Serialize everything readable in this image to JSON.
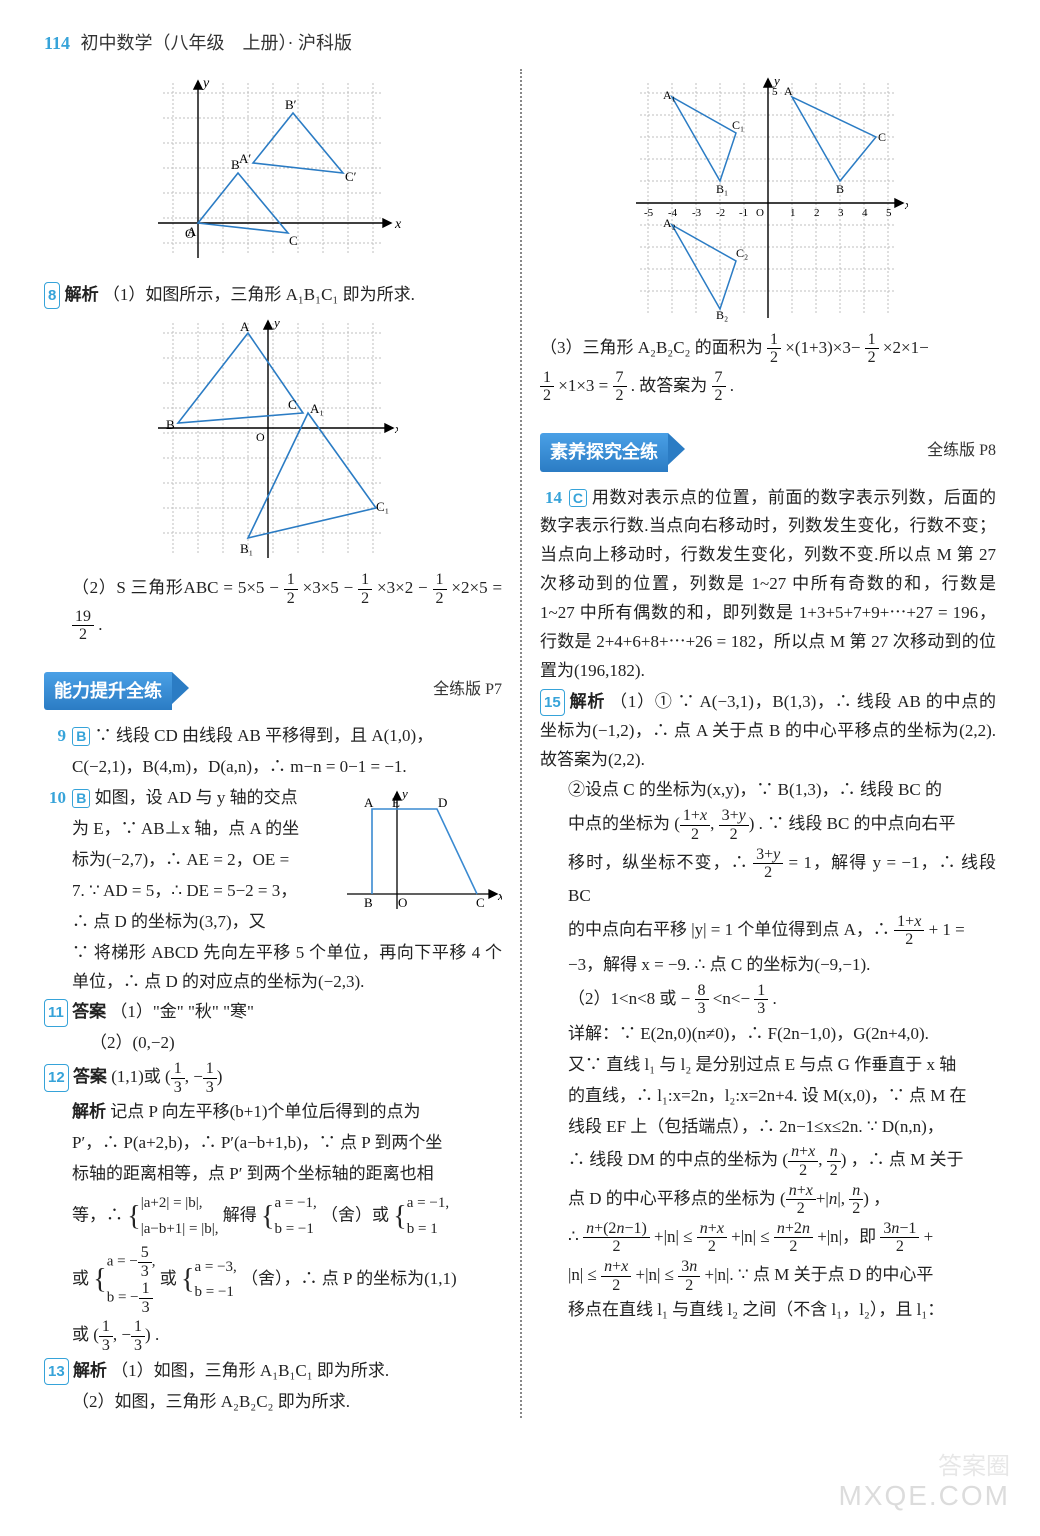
{
  "header": {
    "pageNum": "114",
    "title": "初中数学（八年级　上册）· 沪科版"
  },
  "left": {
    "q8": {
      "num": "8",
      "label": "解析",
      "p1": "（1）如图所示，三角形 A₁B₁C₁ 即为所求.",
      "p2_pre": "（2）S 三角形ABC = 5×5 − ",
      "p2_mid1": "×3×5 − ",
      "p2_mid2": "×3×2 − ",
      "p2_mid3": "×2×5 = ",
      "p2_end": "."
    },
    "banner1": "能力提升全练",
    "banner1_ref": "全练版 P7",
    "q9": {
      "num": "9",
      "ans": "B",
      "t1": "∵ 线段 CD 由线段 AB 平移得到，且 A(1,0)，",
      "t2": "C(−2,1)，B(4,m)，D(a,n)，∴ m−n = 0−1 = −1."
    },
    "q10": {
      "num": "10",
      "ans": "B",
      "t1": "如图，设 AD 与 y 轴的交点",
      "t2": "为 E，∵ AB⊥x 轴，点 A 的坐",
      "t3": "标为(−2,7)，∴ AE = 2，OE =",
      "t4": "7. ∵ AD = 5，∴ DE = 5−2 = 3，",
      "t5": "∴ 点 D 的坐标为(3,7)，又",
      "t6": "∵ 将梯形 ABCD 先向左平移 5 个单位，再向下平移 4 个单位，∴ 点 D 的对应点的坐标为(−2,3)."
    },
    "q11": {
      "num": "11",
      "label": "答案",
      "a1": "（1）\"金\" \"秋\" \"寒\"",
      "a2": "（2）(0,−2)"
    },
    "q12": {
      "num": "12",
      "label": "答案",
      "ans_pre": "(1,1)或",
      "ans_suf": "",
      "jx": "解析",
      "t1": "记点 P 向左平移(b+1)个单位后得到的点为",
      "t2": "P′，∴ P(a+2,b)，∴ P′(a−b+1,b)，∵ 点 P 到两个坐",
      "t3": "标轴的距离相等，点 P′ 到两个坐标轴的距离也相",
      "t4a": "等，∴",
      "t4b": "|a+2| = |b|,",
      "t4c": "|a−b+1| = |b|,",
      "t4d": "解得",
      "t4e": "a = −1,",
      "t4f": "b = −1",
      "t4g": "（舍）或",
      "t4h": "a = −1,",
      "t4i": "b = 1",
      "t5pre": "或",
      "t5a": "a = −",
      "t5b": "b = −",
      "t5c": "或",
      "t5d": "a = −3,",
      "t5e": "b = −1",
      "t5f": "（舍），∴ 点 P 的坐标为(1,1)",
      "t6": "或",
      "t6end": "."
    },
    "q13": {
      "num": "13",
      "label": "解析",
      "t1": "（1）如图，三角形 A₁B₁C₁ 即为所求.",
      "t2": "（2）如图，三角形 A₂B₂C₂ 即为所求."
    },
    "graph_top": {
      "type": "coord-grid",
      "xrange": [
        -2,
        7
      ],
      "yrange": [
        -2,
        7
      ],
      "pts": {
        "A": [
          0,
          0
        ],
        "B": [
          1,
          2
        ],
        "C": [
          3,
          0
        ],
        "Ap": [
          2,
          3
        ],
        "Bp": [
          3,
          5
        ],
        "Cp": [
          5,
          3
        ]
      },
      "grid_color": "#bfbfbf",
      "axis_color": "#000",
      "tri_color": "#2b7cc4"
    },
    "graph_mid": {
      "type": "coord-grid",
      "xrange": [
        -5,
        5
      ],
      "yrange": [
        -5,
        5
      ],
      "pts": {
        "A": [
          -1,
          4.5
        ],
        "B": [
          -4,
          0.5
        ],
        "C": [
          1.5,
          1
        ],
        "A1": [
          2,
          1
        ],
        "B1": [
          0,
          -4.5
        ],
        "C1": [
          4.5,
          -3.5
        ]
      },
      "grid_color": "#bfbfbf",
      "axis_color": "#000",
      "tri_color": "#2b7cc4"
    },
    "graph_q10": {
      "type": "trapezoid",
      "A": [
        -2,
        7
      ],
      "E": [
        0,
        7
      ],
      "D": [
        3,
        7
      ],
      "B": [
        -2,
        0
      ],
      "O": [
        0,
        0
      ],
      "C": [
        5,
        0
      ],
      "axis_color": "#000",
      "line_color": "#3a8ad1"
    }
  },
  "right": {
    "graph_top": {
      "type": "coord-grid",
      "xrange": [
        -5,
        5
      ],
      "yrange": [
        -5,
        6
      ],
      "xticks": [
        "-5",
        "-4",
        "-3",
        "-2",
        "-1",
        "O",
        "1",
        "2",
        "3",
        "4",
        "5"
      ],
      "pts": {
        "A1": [
          -4,
          5
        ],
        "B1": [
          -2,
          1
        ],
        "C1": [
          -1.5,
          3.5
        ],
        "A": [
          1,
          5
        ],
        "B": [
          3,
          1
        ],
        "C": [
          4.5,
          3
        ],
        "A2": [
          -4,
          -1
        ],
        "B2": [
          -2,
          -5
        ],
        "C2": [
          -1.5,
          -3
        ]
      },
      "grid_color": "#bfbfbf",
      "axis_color": "#000",
      "tri_color": "#2b7cc4"
    },
    "p1_pre": "（3）三角形 A₂B₂C₂ 的面积为 ",
    "p1_mid1": "×(1+3)×3−",
    "p1_mid2": "×2×1−",
    "p2_mid": "×1×3 = ",
    "p2_mid2": ". 故答案为",
    "p2_end": ".",
    "banner2": "素养探究全练",
    "banner2_ref": "全练版 P8",
    "q14": {
      "num": "14",
      "ans": "C",
      "t": "用数对表示点的位置，前面的数字表示列数，后面的数字表示行数.当点向右移动时，列数发生变化，行数不变；当点向上移动时，行数发生变化，列数不变.所以点 M 第 27 次移动到的位置，列数是 1~27 中所有奇数的和，行数是 1~27 中所有偶数的和，即列数是 1+3+5+7+9+⋯+27 = 196，行数是 2+4+6+8+⋯+26 = 182，所以点 M 第 27 次移动到的位置为(196,182)."
    },
    "q15": {
      "num": "15",
      "label": "解析",
      "p1": "（1）① ∵ A(−3,1)，B(1,3)，∴ 线段 AB 的中点的坐标为(−1,2)，∴ 点 A 关于点 B 的中心平移点的坐标为(2,2). 故答案为(2,2).",
      "p2": "②设点 C 的坐标为(x,y)，∵ B(1,3)，∴ 线段 BC 的",
      "p3_a": "中点的坐标为",
      "p3_b": ". ∵ 线段 BC 的中点向右平",
      "p4_a": "移时，纵坐标不变，∴ ",
      "p4_b": " = 1，解得 y = −1，∴ 线段 BC",
      "p5_a": "的中点向右平移 |y| = 1 个单位得到点 A，∴ ",
      "p5_b": " + 1 =",
      "p6": "−3，解得 x = −9. ∴ 点 C 的坐标为(−9,−1).",
      "p7_a": "（2）1<n<8 或 −",
      "p7_b": "<n<−",
      "p7_c": ".",
      "p8": "详解：∵ E(2n,0)(n≠0)，∴ F(2n−1,0)，G(2n+4,0).",
      "p9": "又∵ 直线 l₁ 与 l₂ 是分别过点 E 与点 G 作垂直于 x 轴",
      "p10": "的直线，∴ l₁:x=2n，l₂:x=2n+4. 设 M(x,0)，∵ 点 M 在",
      "p11": "线段 EF 上（包括端点），∴ 2n−1≤x≤2n. ∵ D(n,n)，",
      "p12_a": "∴ 线段 DM 的中点的坐标为",
      "p12_b": "，∴ 点 M 关于",
      "p13_a": "点 D 的中心平移点的坐标为",
      "p13_b": "，",
      "p14_a": "∴ ",
      "p14_b": "+|n| ≤ ",
      "p14_c": "+|n| ≤ ",
      "p14_d": "+|n|，即",
      "p14_e": "+",
      "p15_a": "|n| ≤ ",
      "p15_b": "+|n| ≤ ",
      "p15_c": "+|n|. ∵ 点 M 关于点 D 的中心平",
      "p16": "移点在直线 l₁ 与直线 l₂ 之间（不含 l₁，l₂），且 l₁："
    }
  },
  "watermark2": "答案圈",
  "watermark": "MXQE.COM"
}
